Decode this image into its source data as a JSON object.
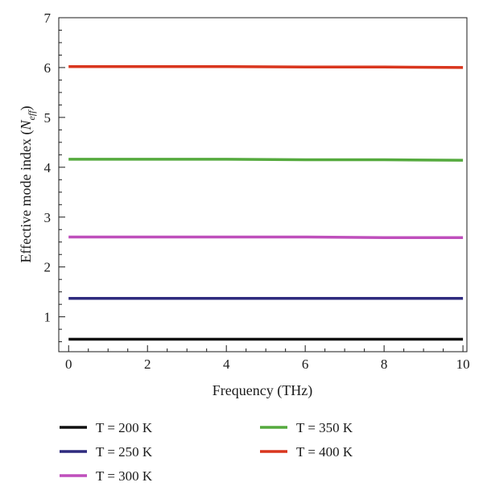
{
  "chart_data": {
    "type": "line",
    "xlabel": "Frequency (THz)",
    "ylabel_main": "Effective mode index (",
    "ylabel_symbol": "N",
    "ylabel_subscript": "eff",
    "ylabel_close": ")",
    "xlim": [
      -0.25,
      10.1
    ],
    "ylim": [
      0.3,
      7.0
    ],
    "xticks": [
      0,
      2,
      4,
      6,
      8,
      10
    ],
    "yticks": [
      1,
      2,
      3,
      4,
      5,
      6,
      7
    ],
    "x": [
      0,
      2,
      4,
      6,
      8,
      10
    ],
    "series": [
      {
        "name": "T = 200 K",
        "color": "#111111",
        "values": [
          0.55,
          0.55,
          0.55,
          0.55,
          0.55,
          0.55
        ]
      },
      {
        "name": "T = 250 K",
        "color": "#2e2a7e",
        "values": [
          1.37,
          1.37,
          1.37,
          1.37,
          1.37,
          1.37
        ]
      },
      {
        "name": "T = 300 K",
        "color": "#bf4fbc",
        "values": [
          2.6,
          2.6,
          2.6,
          2.6,
          2.59,
          2.59
        ]
      },
      {
        "name": "T = 350 K",
        "color": "#55aa3e",
        "values": [
          4.16,
          4.16,
          4.16,
          4.15,
          4.15,
          4.14
        ]
      },
      {
        "name": "T = 400 K",
        "color": "#d9361e",
        "values": [
          6.02,
          6.02,
          6.02,
          6.01,
          6.01,
          6.0
        ]
      }
    ],
    "grid": false,
    "legend_position": "bottom"
  }
}
